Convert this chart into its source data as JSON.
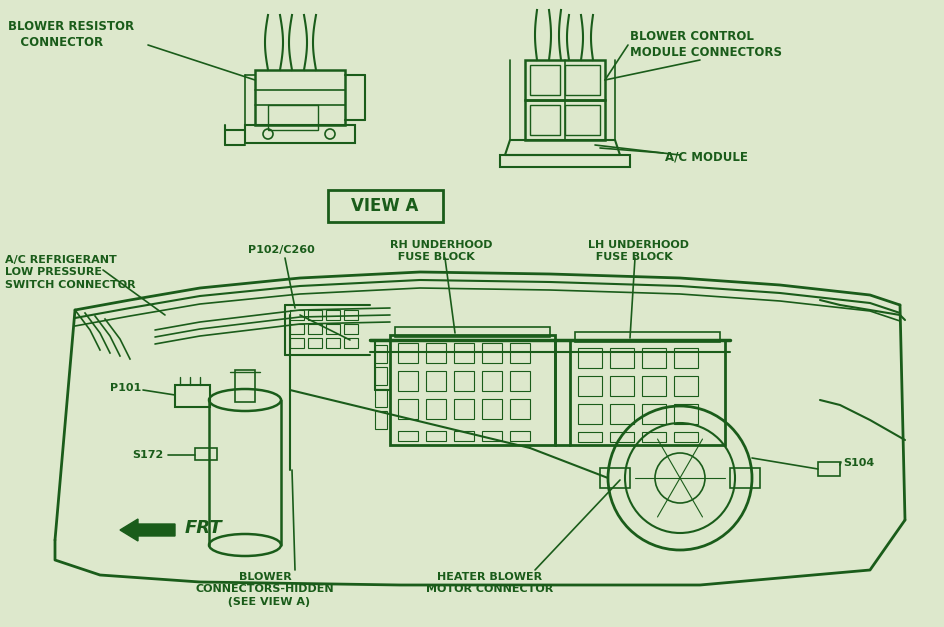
{
  "bg_color": "#dde8cc",
  "line_color": "#1a5c1a",
  "text_color": "#1a5c1a",
  "figsize": [
    9.44,
    6.27
  ],
  "dpi": 100,
  "labels": {
    "blower_resistor": "BLOWER RESISTOR\n   CONNECTOR",
    "blower_control": "BLOWER CONTROL\nMODULE CONNECTORS",
    "ac_module": "A/C MODULE",
    "view_a": "VIEW A",
    "ac_refrigerant": "A/C REFRIGERANT\nLOW PRESSURE\nSWITCH CONNECTOR",
    "p102": "P102/C260",
    "rh_underhood": "RH UNDERHOOD\n  FUSE BLOCK",
    "lh_underhood": "LH UNDERHOOD\n  FUSE BLOCK",
    "p101": "P101",
    "s172": "S172",
    "frt": "FRT",
    "blower_connectors": "BLOWER\nCONNECTORS-HIDDEN\n  (SEE VIEW A)",
    "heater_blower": "HEATER BLOWER\nMOTOR CONNECTOR",
    "s104": "S104"
  }
}
